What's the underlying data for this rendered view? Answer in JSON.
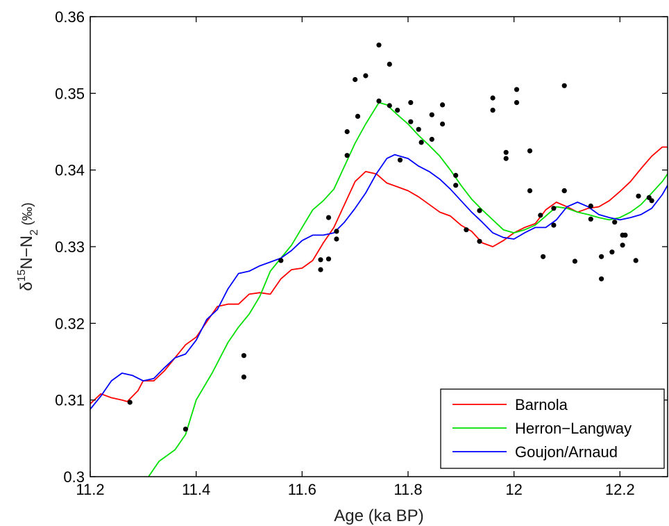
{
  "chart_data": {
    "type": "line",
    "xlabel": "Age (ka BP)",
    "ylabel": {
      "base": "δ",
      "sup": "15",
      "mid": "N−N",
      "sub": "2",
      "unit": " (‰)"
    },
    "xlim": [
      11.2,
      12.29
    ],
    "ylim": [
      0.3,
      0.36
    ],
    "x_ticks": [
      11.2,
      11.4,
      11.6,
      11.8,
      12.0,
      12.2
    ],
    "x_tick_labels": [
      "11.2",
      "11.4",
      "11.6",
      "11.8",
      "12",
      "12.2"
    ],
    "y_ticks": [
      0.3,
      0.31,
      0.32,
      0.33,
      0.34,
      0.35,
      0.36
    ],
    "y_tick_labels": [
      "0.3",
      "0.31",
      "0.32",
      "0.33",
      "0.34",
      "0.35",
      "0.36"
    ],
    "grid": false,
    "legend_position": "bottom-right",
    "series": [
      {
        "name": "Barnola",
        "color": "#ff0000",
        "x": [
          11.2,
          11.22,
          11.24,
          11.26,
          11.27,
          11.29,
          11.3,
          11.32,
          11.34,
          11.36,
          11.38,
          11.4,
          11.42,
          11.44,
          11.46,
          11.48,
          11.5,
          11.52,
          11.54,
          11.56,
          11.58,
          11.6,
          11.62,
          11.64,
          11.66,
          11.68,
          11.7,
          11.72,
          11.74,
          11.76,
          11.78,
          11.8,
          11.82,
          11.84,
          11.86,
          11.88,
          11.9,
          11.92,
          11.94,
          11.96,
          11.98,
          12.0,
          12.02,
          12.04,
          12.06,
          12.08,
          12.1,
          12.12,
          12.14,
          12.16,
          12.18,
          12.2,
          12.22,
          12.24,
          12.26,
          12.28,
          12.29
        ],
        "y": [
          0.3095,
          0.3108,
          0.3103,
          0.31,
          0.3098,
          0.3112,
          0.3125,
          0.3125,
          0.3138,
          0.3155,
          0.3172,
          0.3182,
          0.3202,
          0.3222,
          0.3225,
          0.3225,
          0.3238,
          0.324,
          0.3238,
          0.3258,
          0.327,
          0.3272,
          0.3282,
          0.3305,
          0.3325,
          0.3355,
          0.3385,
          0.3398,
          0.3395,
          0.3383,
          0.3378,
          0.3373,
          0.3365,
          0.3355,
          0.3345,
          0.334,
          0.3328,
          0.332,
          0.3305,
          0.33,
          0.3308,
          0.3318,
          0.3325,
          0.333,
          0.3348,
          0.3358,
          0.3352,
          0.3345,
          0.335,
          0.3352,
          0.336,
          0.3372,
          0.3385,
          0.3402,
          0.3418,
          0.343,
          0.343
        ]
      },
      {
        "name": "Herron−Langway",
        "color": "#00e000",
        "x": [
          11.31,
          11.33,
          11.36,
          11.38,
          11.4,
          11.43,
          11.46,
          11.48,
          11.5,
          11.52,
          11.54,
          11.56,
          11.58,
          11.6,
          11.62,
          11.64,
          11.66,
          11.68,
          11.7,
          11.72,
          11.745,
          11.76,
          11.78,
          11.8,
          11.82,
          11.84,
          11.86,
          11.88,
          11.9,
          11.92,
          11.94,
          11.96,
          11.98,
          12.0,
          12.02,
          12.04,
          12.06,
          12.08,
          12.1,
          12.12,
          12.14,
          12.16,
          12.18,
          12.2,
          12.22,
          12.24,
          12.26,
          12.28,
          12.29
        ],
        "y": [
          0.3,
          0.302,
          0.3035,
          0.3055,
          0.31,
          0.3135,
          0.3175,
          0.3195,
          0.3212,
          0.3235,
          0.3268,
          0.3285,
          0.3302,
          0.3325,
          0.3348,
          0.336,
          0.3375,
          0.3405,
          0.3435,
          0.346,
          0.3488,
          0.3485,
          0.3472,
          0.346,
          0.3445,
          0.3432,
          0.3418,
          0.34,
          0.338,
          0.3362,
          0.3348,
          0.3335,
          0.3322,
          0.3318,
          0.3322,
          0.3328,
          0.334,
          0.3352,
          0.335,
          0.3345,
          0.3342,
          0.3338,
          0.3335,
          0.3338,
          0.3345,
          0.3355,
          0.337,
          0.3385,
          0.3395
        ]
      },
      {
        "name": "Goujon/Arnaud",
        "color": "#0000ff",
        "x": [
          11.2,
          11.22,
          11.24,
          11.26,
          11.28,
          11.3,
          11.32,
          11.34,
          11.36,
          11.38,
          11.4,
          11.42,
          11.44,
          11.46,
          11.48,
          11.5,
          11.52,
          11.54,
          11.56,
          11.58,
          11.6,
          11.62,
          11.64,
          11.66,
          11.68,
          11.7,
          11.72,
          11.74,
          11.76,
          11.775,
          11.8,
          11.82,
          11.84,
          11.86,
          11.88,
          11.9,
          11.92,
          11.94,
          11.96,
          11.98,
          12.0,
          12.02,
          12.04,
          12.06,
          12.08,
          12.1,
          12.12,
          12.14,
          12.16,
          12.18,
          12.2,
          12.22,
          12.24,
          12.26,
          12.28,
          12.29
        ],
        "y": [
          0.3088,
          0.3105,
          0.3125,
          0.3135,
          0.3132,
          0.3125,
          0.3128,
          0.3142,
          0.3155,
          0.316,
          0.3178,
          0.3205,
          0.3218,
          0.3245,
          0.3265,
          0.3268,
          0.3275,
          0.328,
          0.3285,
          0.3295,
          0.3308,
          0.3315,
          0.3315,
          0.3318,
          0.3332,
          0.335,
          0.337,
          0.3395,
          0.3415,
          0.342,
          0.3415,
          0.3405,
          0.3398,
          0.3388,
          0.3375,
          0.336,
          0.3345,
          0.3332,
          0.3318,
          0.3312,
          0.331,
          0.3318,
          0.3325,
          0.3325,
          0.3335,
          0.3352,
          0.3358,
          0.3352,
          0.3342,
          0.3338,
          0.3335,
          0.3338,
          0.3342,
          0.335,
          0.3368,
          0.338
        ]
      }
    ],
    "scatter": {
      "color": "#000000",
      "x": [
        11.275,
        11.38,
        11.49,
        11.49,
        11.56,
        11.635,
        11.635,
        11.65,
        11.65,
        11.665,
        11.665,
        11.685,
        11.685,
        11.7,
        11.705,
        11.72,
        11.745,
        11.745,
        11.765,
        11.765,
        11.78,
        11.785,
        11.805,
        11.805,
        11.82,
        11.825,
        11.845,
        11.845,
        11.865,
        11.865,
        11.89,
        11.89,
        11.91,
        11.935,
        11.935,
        11.96,
        11.96,
        11.985,
        11.985,
        12.005,
        12.005,
        12.03,
        12.03,
        12.05,
        12.055,
        12.075,
        12.075,
        12.095,
        12.095,
        12.095,
        12.115,
        12.145,
        12.145,
        12.165,
        12.165,
        12.185,
        12.19,
        12.205,
        12.205,
        12.21,
        12.23,
        12.235,
        12.255,
        12.26
      ],
      "y": [
        0.3097,
        0.3062,
        0.3158,
        0.313,
        0.3282,
        0.3283,
        0.327,
        0.3338,
        0.3284,
        0.332,
        0.331,
        0.345,
        0.3419,
        0.3518,
        0.347,
        0.3523,
        0.3563,
        0.349,
        0.3538,
        0.3484,
        0.3478,
        0.3413,
        0.3488,
        0.3463,
        0.3453,
        0.3436,
        0.3472,
        0.344,
        0.3485,
        0.346,
        0.3393,
        0.338,
        0.3322,
        0.3347,
        0.3307,
        0.3494,
        0.3478,
        0.3423,
        0.3415,
        0.3505,
        0.3488,
        0.3425,
        0.3373,
        0.3341,
        0.3287,
        0.335,
        0.3328,
        0.351,
        0.3373,
        0.3373,
        0.3281,
        0.3353,
        0.3336,
        0.3287,
        0.3258,
        0.3293,
        0.3332,
        0.3315,
        0.3302,
        0.3315,
        0.3282,
        0.3366,
        0.3364,
        0.336
      ]
    }
  }
}
